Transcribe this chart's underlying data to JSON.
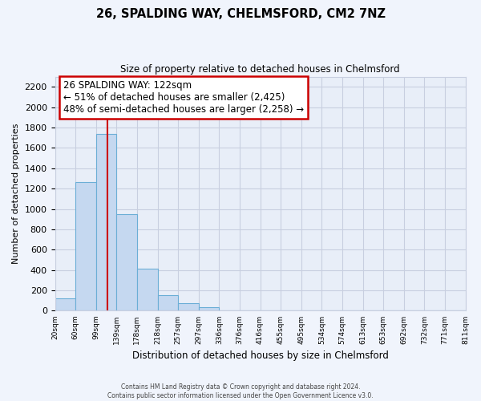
{
  "title": "26, SPALDING WAY, CHELMSFORD, CM2 7NZ",
  "subtitle": "Size of property relative to detached houses in Chelmsford",
  "xlabel": "Distribution of detached houses by size in Chelmsford",
  "ylabel": "Number of detached properties",
  "bar_values": [
    120,
    1265,
    1740,
    950,
    415,
    150,
    75,
    35,
    0,
    0,
    0,
    0,
    0,
    0,
    0,
    0,
    0,
    0,
    0,
    0
  ],
  "bin_labels": [
    "20sqm",
    "60sqm",
    "99sqm",
    "139sqm",
    "178sqm",
    "218sqm",
    "257sqm",
    "297sqm",
    "336sqm",
    "376sqm",
    "416sqm",
    "455sqm",
    "495sqm",
    "534sqm",
    "574sqm",
    "613sqm",
    "653sqm",
    "692sqm",
    "732sqm",
    "771sqm",
    "811sqm"
  ],
  "bar_color": "#c5d8f0",
  "bar_edge_color": "#6baed6",
  "annotation_text_line1": "26 SPALDING WAY: 122sqm",
  "annotation_text_line2": "← 51% of detached houses are smaller (2,425)",
  "annotation_text_line3": "48% of semi-detached houses are larger (2,258) →",
  "annotation_box_color": "#ffffff",
  "annotation_box_edge_color": "#cc0000",
  "vline_color": "#cc0000",
  "ylim": [
    0,
    2300
  ],
  "yticks": [
    0,
    200,
    400,
    600,
    800,
    1000,
    1200,
    1400,
    1600,
    1800,
    2000,
    2200
  ],
  "footer_line1": "Contains HM Land Registry data © Crown copyright and database right 2024.",
  "footer_line2": "Contains public sector information licensed under the Open Government Licence v3.0.",
  "plot_bg_color": "#e8eef8",
  "fig_bg_color": "#f0f4fc",
  "grid_color": "#c8cfe0",
  "n_bins": 20
}
